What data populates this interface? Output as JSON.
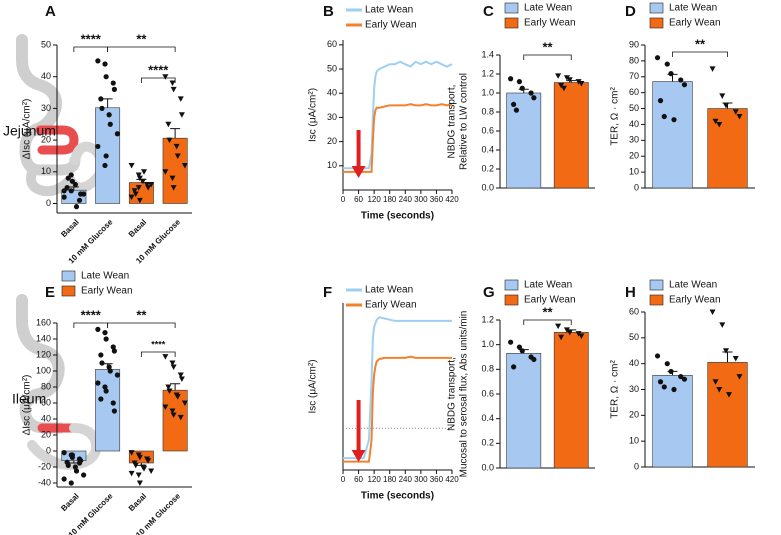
{
  "row_labels": [
    "Jejunum",
    "Ileum"
  ],
  "chart_data": [
    {
      "type": "bar",
      "panel": "A",
      "ylabel": "ΔIsc (μA/cm²)",
      "categories": [
        "Basal",
        "10 mM Glucose",
        "Basal",
        "10 mM Glucose"
      ],
      "ylim": [
        -3,
        50
      ],
      "yticks": [
        0,
        10,
        20,
        30,
        40,
        50
      ],
      "series": [
        {
          "color": "#a7c9f1",
          "marker": "circle",
          "values": [
            4.2,
            30.2,
            null,
            null
          ],
          "errors": [
            1.0,
            2.8,
            null,
            null
          ],
          "points": [
            [
              2,
              4,
              7,
              1,
              3,
              5,
              8,
              6,
              -1,
              3,
              4,
              9
            ],
            [
              45,
              44,
              40,
              38,
              36,
              33,
              30,
              28,
              25,
              22,
              18,
              12,
              15
            ],
            null,
            null
          ]
        },
        {
          "color": "#f26b14",
          "marker": "triangle",
          "values": [
            null,
            null,
            6.6,
            20.6
          ],
          "errors": [
            null,
            null,
            1.0,
            3.0
          ],
          "points": [
            null,
            null,
            [
              12,
              9,
              8,
              6,
              5,
              4,
              3,
              7,
              10,
              6,
              2,
              5,
              1
            ],
            [
              40,
              38,
              36,
              33,
              28,
              25,
              20,
              18,
              15,
              12,
              10,
              8,
              5
            ]
          ]
        }
      ],
      "annotations": [
        {
          "text": "****"
        },
        {
          "text": "**"
        },
        {
          "text": "****"
        }
      ]
    },
    {
      "type": "line",
      "panel": "B",
      "ylabel": "Isc (μA/cm²)",
      "xlabel": "Time (seconds)",
      "x": [
        0,
        20,
        40,
        60,
        80,
        100,
        110,
        115,
        120,
        125,
        130,
        140,
        160,
        180,
        200,
        220,
        240,
        260,
        280,
        300,
        320,
        340,
        360,
        380,
        400,
        420
      ],
      "xlim": [
        0,
        420
      ],
      "xticks": [
        0,
        60,
        120,
        180,
        240,
        300,
        360,
        420
      ],
      "ylim": [
        0,
        62
      ],
      "yticks": [
        10,
        20,
        30,
        40,
        50,
        60
      ],
      "series": [
        {
          "name": "Late Wean",
          "color": "#9fd0f0",
          "values": [
            9,
            9,
            9,
            9,
            9,
            9,
            15,
            30,
            42,
            47,
            49,
            50,
            51,
            52,
            52,
            53,
            52,
            51,
            53,
            52,
            53,
            52,
            53,
            52,
            51,
            52
          ]
        },
        {
          "name": "Early Wean",
          "color": "#f0822f",
          "values": [
            7.5,
            7.5,
            7.5,
            7.5,
            7.5,
            7.5,
            7.5,
            20,
            30,
            33,
            34,
            34,
            34.5,
            35,
            35,
            35,
            35,
            35.5,
            35,
            35,
            35.5,
            35,
            35,
            35.5,
            35,
            35.5
          ]
        }
      ]
    },
    {
      "type": "bar",
      "panel": "C",
      "ylabel": [
        "NBDG transport,",
        "Relative to LW control"
      ],
      "ylim": [
        0,
        1.4
      ],
      "yticks": [
        {
          "value": 0,
          "label": "0.0"
        },
        0.2,
        0.4,
        0.6,
        0.8,
        {
          "value": 1,
          "label": "1.0"
        },
        1.2,
        1.4
      ],
      "series": [
        {
          "name": "Late Wean",
          "color": "#a7c9f1",
          "marker": "circle",
          "values": [
            1.0
          ],
          "errors": [
            0.04
          ],
          "points": [
            [
              1.15,
              1.12,
              1.05,
              1.0,
              0.95,
              0.88,
              0.82
            ]
          ]
        },
        {
          "name": "Early Wean",
          "color": "#f26b14",
          "marker": "triangle",
          "values": [
            1.11
          ],
          "errors": [
            0.02
          ],
          "points": [
            [
              1.18,
              1.16,
              1.14,
              1.12,
              1.1,
              1.08,
              1.05
            ]
          ]
        }
      ],
      "annotations": [
        {
          "text": "**"
        }
      ]
    },
    {
      "type": "bar",
      "panel": "D",
      "ylabel": "TER, Ω · cm²",
      "ylim": [
        0,
        90
      ],
      "yticks": [
        0,
        10,
        20,
        30,
        40,
        50,
        60,
        70,
        80,
        90
      ],
      "series": [
        {
          "name": "Late Wean",
          "color": "#a7c9f1",
          "marker": "circle",
          "values": [
            67
          ],
          "errors": [
            4.5
          ],
          "points": [
            [
              82,
              78,
              72,
              68,
              65,
              55,
              45,
              43
            ]
          ]
        },
        {
          "name": "Early Wean",
          "color": "#f26b14",
          "marker": "triangle",
          "values": [
            50
          ],
          "errors": [
            3.5
          ],
          "points": [
            [
              75,
              58,
              52,
              48,
              45,
              42,
              40
            ]
          ]
        }
      ],
      "annotations": [
        {
          "text": "**"
        }
      ]
    },
    {
      "type": "bar",
      "panel": "E",
      "ylabel": "ΔIsc (μA/cm²)",
      "categories": [
        "Basal",
        "10 mM Glucose",
        "Basal",
        "10 mM Glucose"
      ],
      "ylim": [
        -45,
        160
      ],
      "yticks": [
        -40,
        -20,
        0,
        20,
        40,
        60,
        80,
        100,
        120,
        140,
        160
      ],
      "legend": [
        {
          "name": "Late Wean",
          "color": "#a7c9f1"
        },
        {
          "name": "Early Wean",
          "color": "#f26b14"
        }
      ],
      "series": [
        {
          "color": "#a7c9f1",
          "marker": "circle",
          "values": [
            -12,
            102,
            null,
            null
          ],
          "errors": [
            3,
            7,
            null,
            null
          ],
          "points": [
            [
              -2,
              -5,
              -8,
              -10,
              -12,
              -14,
              -18,
              -20,
              -25,
              -30,
              -35,
              -40,
              -5,
              -15
            ],
            [
              152,
              148,
              140,
              130,
              125,
              120,
              110,
              105,
              100,
              95,
              85,
              80,
              75,
              60,
              50,
              65
            ],
            null,
            null
          ]
        },
        {
          "color": "#f26b14",
          "marker": "triangle",
          "values": [
            null,
            null,
            -15,
            76
          ],
          "errors": [
            null,
            null,
            3,
            8
          ],
          "points": [
            null,
            null,
            [
              -2,
              -5,
              -8,
              -10,
              -12,
              -15,
              -18,
              -20,
              -22,
              -25,
              -28,
              -30,
              -40
            ],
            [
              118,
              110,
              105,
              95,
              90,
              80,
              75,
              70,
              68,
              60,
              55,
              50,
              45,
              42
            ]
          ]
        }
      ],
      "annotations": [
        {
          "text": "****"
        },
        {
          "text": "**"
        },
        {
          "text": "****"
        }
      ]
    },
    {
      "type": "line",
      "panel": "F",
      "ylabel": "Isc (μA/cm²)",
      "xlabel": "Time (seconds)",
      "zero_line": true,
      "x": [
        0,
        20,
        40,
        60,
        80,
        100,
        110,
        115,
        120,
        125,
        130,
        140,
        160,
        180,
        200,
        220,
        240,
        260,
        280,
        300,
        320,
        340,
        360,
        380,
        400,
        420
      ],
      "xlim": [
        0,
        420
      ],
      "xticks": [
        0,
        60,
        120,
        180,
        240,
        300,
        360,
        420
      ],
      "ylim": [
        -35,
        105
      ],
      "series": [
        {
          "name": "Late Wean",
          "color": "#9fd0f0",
          "values": [
            -25,
            -25,
            -25,
            -25,
            -25,
            -10,
            40,
            75,
            85,
            88,
            91,
            93,
            92,
            91,
            90,
            90,
            90,
            90,
            90,
            90,
            90,
            90,
            90,
            90,
            90,
            90
          ]
        },
        {
          "name": "Early Wean",
          "color": "#f0822f",
          "values": [
            -28,
            -28,
            -28,
            -28,
            -28,
            -28,
            -10,
            30,
            45,
            52,
            56,
            58,
            59,
            59,
            59,
            59,
            59,
            60,
            59,
            59,
            59,
            59,
            59,
            59,
            59,
            59
          ]
        }
      ]
    },
    {
      "type": "bar",
      "panel": "G",
      "ylabel": [
        "NBDG transport,",
        "Mucosal to serosal flux, Abs units/min"
      ],
      "ylim": [
        0,
        1.2
      ],
      "yticks": [
        {
          "value": 0,
          "label": "0.0"
        },
        0.2,
        0.4,
        0.6,
        0.8,
        {
          "value": 1,
          "label": "1.0"
        },
        1.2
      ],
      "series": [
        {
          "name": "Late Wean",
          "color": "#a7c9f1",
          "marker": "circle",
          "values": [
            0.93
          ],
          "errors": [
            0.03
          ],
          "points": [
            [
              1.02,
              0.98,
              0.95,
              0.9,
              0.88,
              0.82
            ]
          ]
        },
        {
          "name": "Early Wean",
          "color": "#f26b14",
          "marker": "triangle",
          "values": [
            1.1
          ],
          "errors": [
            0.02
          ],
          "points": [
            [
              1.15,
              1.12,
              1.1,
              1.09,
              1.07,
              1.06
            ]
          ]
        }
      ],
      "annotations": [
        {
          "text": "**"
        }
      ]
    },
    {
      "type": "bar",
      "panel": "H",
      "ylabel": "TER, Ω · cm²",
      "ylim": [
        0,
        60
      ],
      "yticks": [
        0,
        10,
        20,
        30,
        40,
        50,
        60
      ],
      "series": [
        {
          "name": "Late Wean",
          "color": "#a7c9f1",
          "marker": "circle",
          "values": [
            35.5
          ],
          "errors": [
            1.5
          ],
          "points": [
            [
              43,
              40,
              37,
              35,
              34,
              33,
              31,
              30
            ]
          ]
        },
        {
          "name": "Early Wean",
          "color": "#f26b14",
          "marker": "triangle",
          "values": [
            40.5
          ],
          "errors": [
            4
          ],
          "points": [
            [
              60,
              55,
              45,
              42,
              35,
              33,
              30,
              28
            ]
          ]
        }
      ]
    }
  ]
}
